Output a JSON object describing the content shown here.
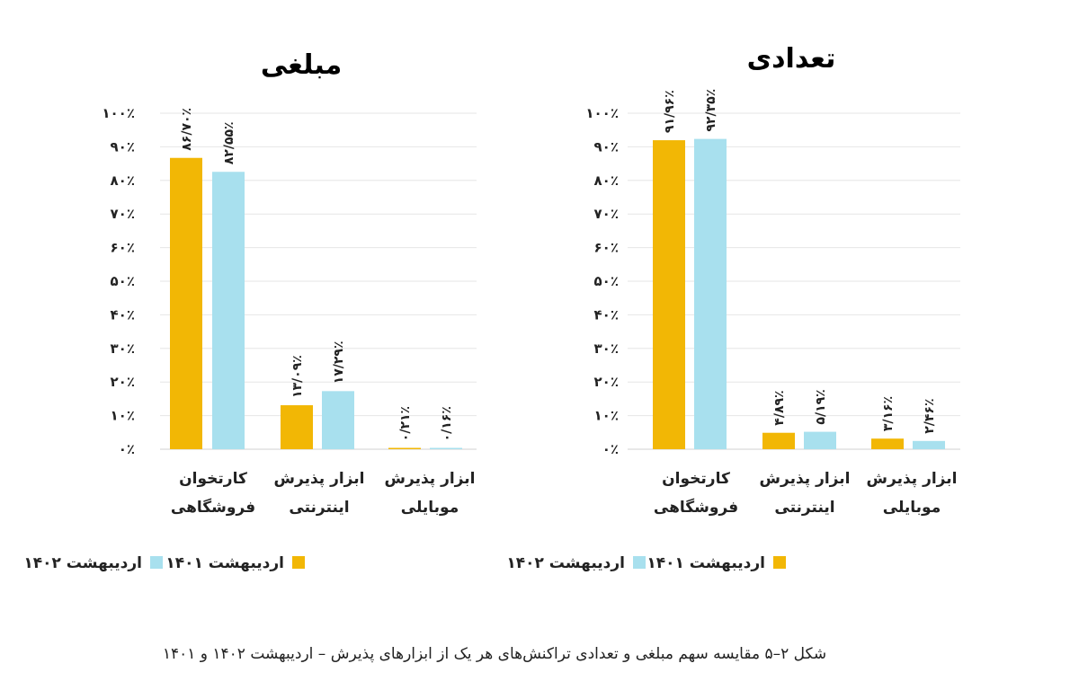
{
  "chart_data": [
    {
      "type": "bar",
      "title": "مبلغی",
      "categories": [
        [
          "کارتخوان",
          "فروشگاهی"
        ],
        [
          "ابزار پذیرش",
          "اینترنتی"
        ],
        [
          "ابزار پذیرش",
          "موبایلی"
        ]
      ],
      "series": [
        {
          "name": "اردیبهشت ۱۴۰۱",
          "color": "#F2B705",
          "values": [
            86.7,
            13.09,
            0.21
          ],
          "labels": [
            "۸۶/۷۰٪",
            "۱۳/۰۹٪",
            "۰/۲۱٪"
          ]
        },
        {
          "name": "اردیبهشت ۱۴۰۲",
          "color": "#A8E0EE",
          "values": [
            82.55,
            17.29,
            0.16
          ],
          "labels": [
            "۸۲/۵۵٪",
            "۱۷/۲۹٪",
            "۰/۱۶٪"
          ]
        }
      ],
      "ylim": [
        0,
        100
      ],
      "yticks": [
        0,
        10,
        20,
        30,
        40,
        50,
        60,
        70,
        80,
        90,
        100
      ],
      "ytick_labels": [
        "۰٪",
        "۱۰٪",
        "۲۰٪",
        "۳۰٪",
        "۴۰٪",
        "۵۰٪",
        "۶۰٪",
        "۷۰٪",
        "۸۰٪",
        "۹۰٪",
        "۱۰۰٪"
      ],
      "grid": true,
      "legend_position": "bottom"
    },
    {
      "type": "bar",
      "title": "تعدادی",
      "categories": [
        [
          "کارتخوان",
          "فروشگاهی"
        ],
        [
          "ابزار پذیرش",
          "اینترنتی"
        ],
        [
          "ابزار پذیرش",
          "موبایلی"
        ]
      ],
      "series": [
        {
          "name": "اردیبهشت ۱۴۰۱",
          "color": "#F2B705",
          "values": [
            91.96,
            4.89,
            3.16
          ],
          "labels": [
            "۹۱/۹۶٪",
            "۴/۸۹٪",
            "۳/۱۶٪"
          ]
        },
        {
          "name": "اردیبهشت ۱۴۰۲",
          "color": "#A8E0EE",
          "values": [
            92.35,
            5.19,
            2.46
          ],
          "labels": [
            "۹۲/۳۵٪",
            "۵/۱۹٪",
            "۲/۴۶٪"
          ]
        }
      ],
      "ylim": [
        0,
        100
      ],
      "yticks": [
        0,
        10,
        20,
        30,
        40,
        50,
        60,
        70,
        80,
        90,
        100
      ],
      "ytick_labels": [
        "۰٪",
        "۱۰٪",
        "۲۰٪",
        "۳۰٪",
        "۴۰٪",
        "۵۰٪",
        "۶۰٪",
        "۷۰٪",
        "۸۰٪",
        "۹۰٪",
        "۱۰۰٪"
      ],
      "grid": true,
      "legend_position": "bottom"
    }
  ],
  "caption": "شکل ۲–۵ مقایسه سهم مبلغی و تعدادی تراکنش‌های هر یک از ابزارهای پذیرش – اردیبهشت ۱۴۰۲ و ۱۴۰۱"
}
